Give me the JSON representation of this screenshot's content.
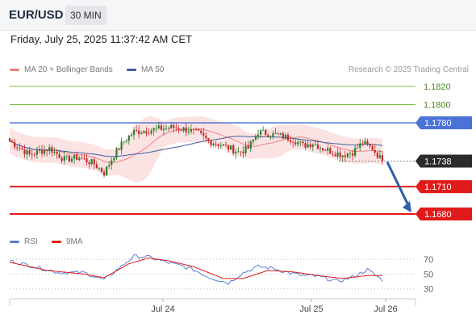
{
  "header": {
    "pair": "EUR/USD",
    "timeframe": "30 MIN",
    "datetime": "Friday, July 25, 2025 11:37:42 AM CET"
  },
  "legend": {
    "ma20_bb": "MA 20 + Bollinger Bands",
    "ma50": "MA 50",
    "credit": "Research © 2025 Trading Central",
    "rsi": "RSI",
    "ma9": "9MA"
  },
  "colors": {
    "bull": "#2e7d32",
    "bear": "#c62828",
    "bb_fill": "#fbdcdc",
    "ma20": "#f08080",
    "ma50": "#3f5f9f",
    "resistance": "#4a72d9",
    "support": "#e11b1b",
    "target_up": "#7cc242",
    "current": "#2b2b2b",
    "forecast_arrow": "#2f5fa8",
    "rsi": "#5b7fd6",
    "rsi_ma": "#e11b1b"
  },
  "chart_data": [
    {
      "type": "candlestick",
      "name": "EUR/USD 30 MIN",
      "ylim": [
        1.1665,
        1.1835
      ],
      "x_ticks": [
        "Jul 24",
        "Jul 25",
        "Jul 26"
      ],
      "levels": [
        {
          "value": 1.182,
          "label": "1.1820",
          "kind": "target"
        },
        {
          "value": 1.18,
          "label": "1.1800",
          "kind": "target"
        },
        {
          "value": 1.178,
          "label": "1.1780",
          "kind": "resistance"
        },
        {
          "value": 1.1738,
          "label": "1.1738",
          "kind": "current"
        },
        {
          "value": 1.171,
          "label": "1.1710",
          "kind": "support"
        },
        {
          "value": 1.168,
          "label": "1.1680",
          "kind": "support"
        }
      ],
      "forecast": {
        "from": 1.1737,
        "to": 1.168
      },
      "anchors": [
        [
          0,
          1.176
        ],
        [
          8,
          1.1745
        ],
        [
          16,
          1.1752
        ],
        [
          22,
          1.174
        ],
        [
          28,
          1.1742
        ],
        [
          34,
          1.1735
        ],
        [
          38,
          1.1725
        ],
        [
          42,
          1.1745
        ],
        [
          46,
          1.176
        ],
        [
          50,
          1.177
        ],
        [
          56,
          1.1772
        ],
        [
          62,
          1.1774
        ],
        [
          66,
          1.1775
        ],
        [
          72,
          1.1772
        ],
        [
          76,
          1.1768
        ],
        [
          80,
          1.176
        ],
        [
          86,
          1.1755
        ],
        [
          92,
          1.1748
        ],
        [
          96,
          1.1752
        ],
        [
          100,
          1.177
        ],
        [
          104,
          1.1768
        ],
        [
          110,
          1.1765
        ],
        [
          114,
          1.1762
        ],
        [
          118,
          1.1755
        ],
        [
          122,
          1.1758
        ],
        [
          126,
          1.1752
        ],
        [
          130,
          1.1748
        ],
        [
          134,
          1.1745
        ],
        [
          138,
          1.1748
        ],
        [
          142,
          1.1758
        ],
        [
          146,
          1.1752
        ],
        [
          150,
          1.1738
        ]
      ]
    },
    {
      "type": "line",
      "name": "RSI",
      "ylim": [
        22,
        80
      ],
      "y_ticks": [
        30,
        50,
        70
      ],
      "anchors": [
        [
          0,
          68
        ],
        [
          10,
          60
        ],
        [
          20,
          52
        ],
        [
          30,
          52
        ],
        [
          38,
          42
        ],
        [
          44,
          58
        ],
        [
          50,
          74
        ],
        [
          56,
          73
        ],
        [
          62,
          67
        ],
        [
          68,
          62
        ],
        [
          74,
          56
        ],
        [
          80,
          46
        ],
        [
          88,
          38
        ],
        [
          94,
          52
        ],
        [
          100,
          60
        ],
        [
          106,
          58
        ],
        [
          112,
          52
        ],
        [
          118,
          48
        ],
        [
          124,
          47
        ],
        [
          132,
          40
        ],
        [
          138,
          46
        ],
        [
          144,
          56
        ],
        [
          150,
          42
        ]
      ],
      "ma_anchors": [
        [
          0,
          66
        ],
        [
          15,
          55
        ],
        [
          30,
          50
        ],
        [
          38,
          45
        ],
        [
          48,
          64
        ],
        [
          56,
          72
        ],
        [
          64,
          68
        ],
        [
          74,
          60
        ],
        [
          86,
          44
        ],
        [
          94,
          44
        ],
        [
          104,
          55
        ],
        [
          114,
          53
        ],
        [
          124,
          48
        ],
        [
          134,
          44
        ],
        [
          144,
          48
        ],
        [
          150,
          48
        ]
      ]
    }
  ]
}
